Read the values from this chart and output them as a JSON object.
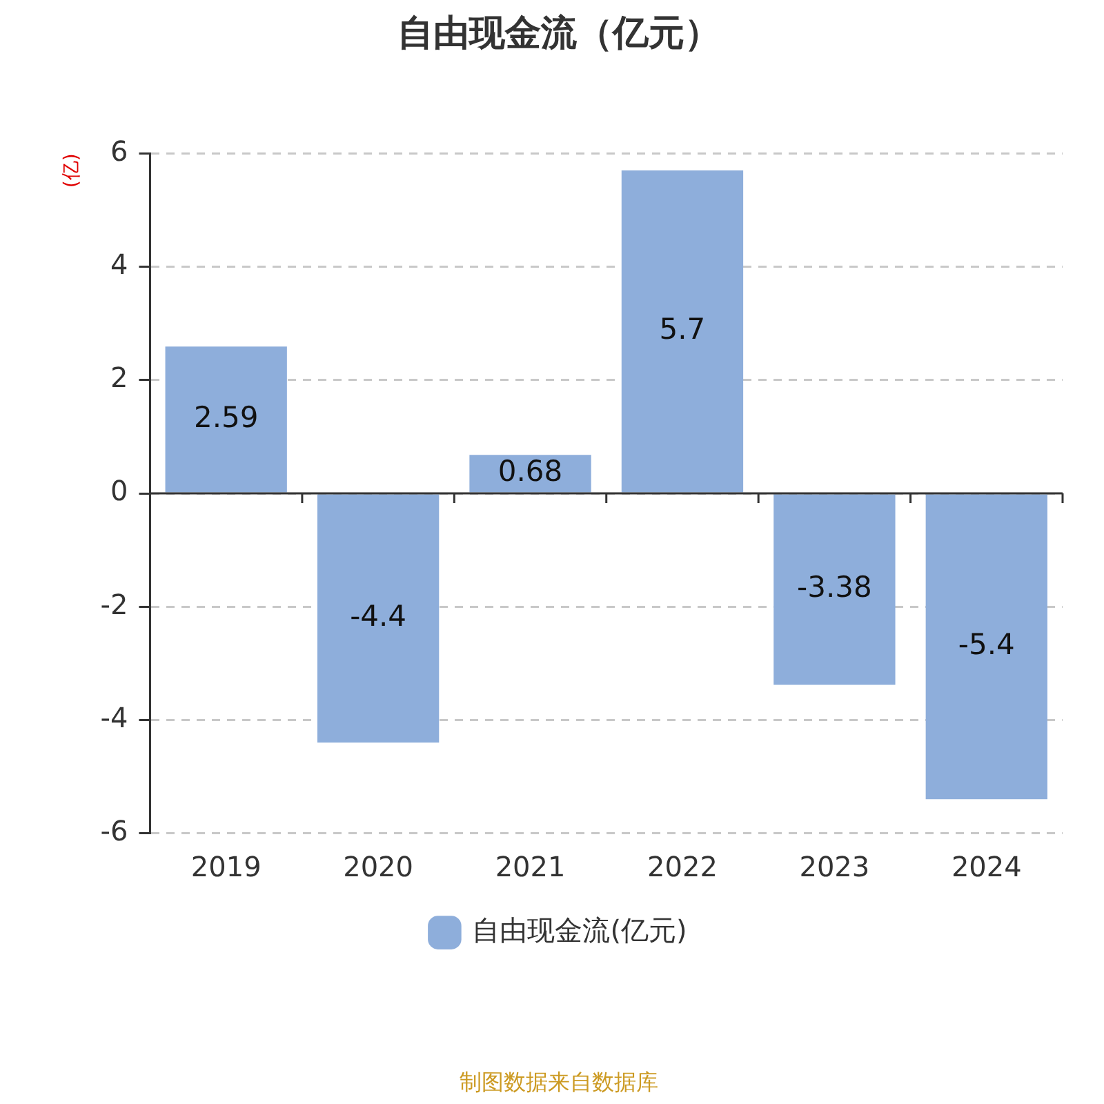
{
  "chart_data": {
    "type": "bar",
    "title": "自由现金流（亿元）",
    "ylabel": "(亿)",
    "categories": [
      "2019",
      "2020",
      "2021",
      "2022",
      "2023",
      "2024"
    ],
    "series": [
      {
        "name": "自由现金流(亿元)",
        "color": "#8eaedb",
        "values": [
          2.59,
          -4.4,
          0.68,
          5.7,
          -3.38,
          -5.4
        ]
      }
    ],
    "ylim": [
      -6,
      6
    ],
    "yticks": [
      -6,
      -4,
      -2,
      0,
      2,
      4,
      6
    ],
    "grid": "y",
    "legend": "bottom",
    "data_labels": true,
    "annotations": [
      "制图数据来自数据库"
    ]
  }
}
